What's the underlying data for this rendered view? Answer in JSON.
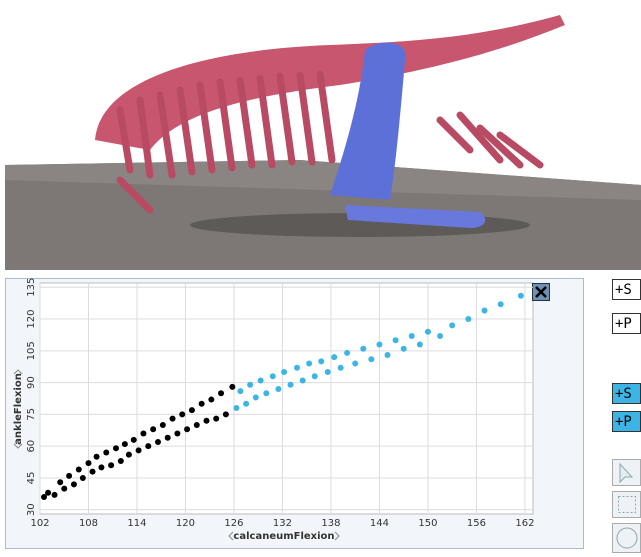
{
  "chart_data": {
    "type": "scatter",
    "xlabel": "calcaneumFlexion",
    "ylabel": "ankleFlexion",
    "xlim": [
      102,
      163
    ],
    "ylim": [
      28,
      137
    ],
    "xticks": [
      102,
      108,
      114,
      120,
      126,
      132,
      138,
      144,
      150,
      156,
      162
    ],
    "yticks": [
      30,
      45,
      60,
      75,
      90,
      105,
      120,
      135
    ],
    "grid": true,
    "series": [
      {
        "color": "#000000",
        "x": [
          102.5,
          103,
          103.8,
          104.5,
          105,
          105.6,
          106.2,
          106.8,
          107.3,
          108,
          108.5,
          109,
          109.6,
          110.2,
          110.8,
          111.4,
          112,
          112.5,
          113,
          113.6,
          114.2,
          114.8,
          115.4,
          116,
          116.6,
          117.2,
          117.8,
          118.4,
          119,
          119.6,
          120.2,
          120.8,
          121.4,
          122,
          122.6,
          123.2,
          123.8,
          124.4,
          125,
          125.8
        ],
        "values": [
          36,
          38,
          37,
          43,
          40,
          46,
          42,
          49,
          45,
          52,
          48,
          55,
          50,
          57,
          51,
          59,
          53,
          61,
          56,
          63,
          58,
          66,
          60,
          68,
          62,
          70,
          64,
          73,
          66,
          75,
          68,
          77,
          70,
          80,
          72,
          82,
          73,
          85,
          75,
          88
        ]
      },
      {
        "color": "#3db4e6",
        "x": [
          126.3,
          126.8,
          127.5,
          128,
          128.7,
          129.3,
          130,
          130.8,
          131.5,
          132.2,
          133,
          133.8,
          134.5,
          135.3,
          136,
          136.8,
          137.6,
          138.4,
          139.2,
          140,
          141,
          142,
          143,
          144,
          145,
          146,
          147,
          148,
          149,
          150,
          151.5,
          153,
          155,
          157,
          159,
          161.5
        ],
        "values": [
          78,
          86,
          80,
          89,
          83,
          91,
          85,
          93,
          87,
          95,
          89,
          97,
          91,
          99,
          93,
          100,
          95,
          102,
          97,
          104,
          99,
          106,
          101,
          108,
          103,
          110,
          106,
          112,
          108,
          114,
          112,
          117,
          120,
          124,
          127,
          131
        ]
      }
    ]
  },
  "toolbar": {
    "buttons": [
      "+S",
      "+P",
      "+S",
      "+P"
    ]
  }
}
